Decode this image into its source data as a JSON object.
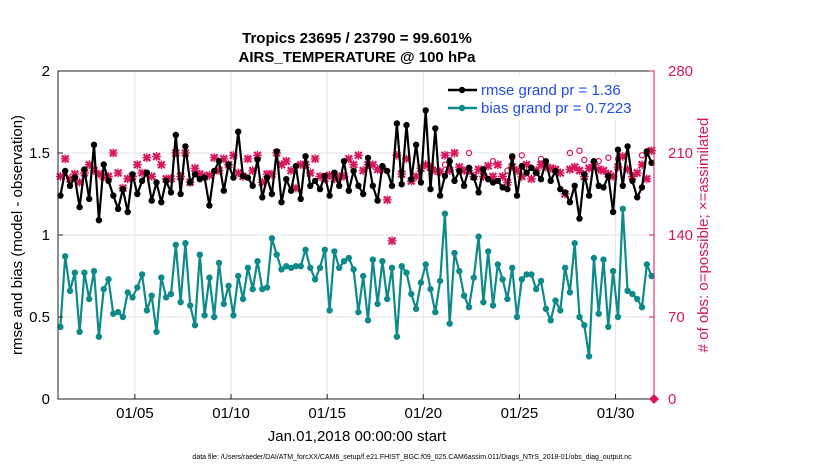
{
  "colors": {
    "rmse": "#000000",
    "bias": "#0e8a8a",
    "obs": "#d6175e",
    "legend_text": "#1f4fe0",
    "grid": "#e6e6e6",
    "axis": "#222222"
  },
  "chart_data": {
    "type": "line",
    "title": "Tropics 23695 / 23790 = 99.601%",
    "subtitle": "AIRS_TEMPERATURE @ 100 hPa",
    "xlabel": "Jan.01,2018 00:00:00 start",
    "ylabel_left": "rmse and bias (model - observation)",
    "ylabel_right": "# of obs: o=possible; ×=assimilated",
    "footer": "data file: /Users/raeder/DAI/ATM_forcXX/CAM6_setup/f.e21.FHIST_BGC.f09_025.CAM6assim.011/Diags_NTrS_2018-01/obs_diag_output.nc",
    "xlim": [
      1,
      32
    ],
    "x_ticks": [
      5,
      10,
      15,
      20,
      25,
      30
    ],
    "x_tick_labels": [
      "01/05",
      "01/10",
      "01/15",
      "01/20",
      "01/25",
      "01/30"
    ],
    "ylim_left": [
      0,
      2
    ],
    "y_ticks_left": [
      0,
      0.5,
      1,
      1.5,
      2
    ],
    "y_tick_labels_left": [
      "0",
      "0.5",
      "1",
      "1.5",
      "2"
    ],
    "ylim_right": [
      0,
      280
    ],
    "y_ticks_right": [
      0,
      70,
      140,
      210,
      280
    ],
    "y_tick_labels_right": [
      "0",
      "70",
      "140",
      "210",
      "280"
    ],
    "legend": [
      {
        "name": "rmse grand pr = 1.36",
        "color_key": "rmse"
      },
      {
        "name": "bias grand pr = 0.7223",
        "color_key": "bias"
      }
    ],
    "series": [
      {
        "name": "rmse",
        "axis": "left",
        "style": "line+dot",
        "x": [
          1.125,
          1.375,
          1.625,
          1.875,
          2.125,
          2.375,
          2.625,
          2.875,
          3.125,
          3.375,
          3.625,
          3.875,
          4.125,
          4.375,
          4.625,
          4.875,
          5.125,
          5.375,
          5.625,
          5.875,
          6.125,
          6.375,
          6.625,
          6.875,
          7.125,
          7.375,
          7.625,
          7.875,
          8.125,
          8.375,
          8.625,
          8.875,
          9.125,
          9.375,
          9.625,
          9.875,
          10.125,
          10.375,
          10.625,
          10.875,
          11.125,
          11.375,
          11.625,
          11.875,
          12.125,
          12.375,
          12.625,
          12.875,
          13.125,
          13.375,
          13.625,
          13.875,
          14.125,
          14.375,
          14.625,
          14.875,
          15.125,
          15.375,
          15.625,
          15.875,
          16.125,
          16.375,
          16.625,
          16.875,
          17.125,
          17.375,
          17.625,
          17.875,
          18.125,
          18.375,
          18.625,
          18.875,
          19.125,
          19.375,
          19.625,
          19.875,
          20.125,
          20.375,
          20.625,
          20.875,
          21.125,
          21.375,
          21.625,
          21.875,
          22.125,
          22.375,
          22.625,
          22.875,
          23.125,
          23.375,
          23.625,
          23.875,
          24.125,
          24.375,
          24.625,
          24.875,
          25.125,
          25.375,
          25.625,
          25.875,
          26.125,
          26.375,
          26.625,
          26.875,
          27.125,
          27.375,
          27.625,
          27.875,
          28.125,
          28.375,
          28.625,
          28.875,
          29.125,
          29.375,
          29.625,
          29.875,
          30.125,
          30.375,
          30.625,
          30.875,
          31.125,
          31.375,
          31.625,
          31.875
        ],
        "values": [
          1.24,
          1.39,
          1.3,
          1.35,
          1.17,
          1.4,
          1.22,
          1.55,
          1.09,
          1.43,
          1.33,
          1.24,
          1.16,
          1.28,
          1.14,
          1.37,
          1.25,
          1.33,
          1.38,
          1.21,
          1.32,
          1.2,
          1.33,
          1.26,
          1.61,
          1.25,
          1.54,
          1.32,
          1.37,
          1.34,
          1.35,
          1.18,
          1.39,
          1.45,
          1.27,
          1.43,
          1.35,
          1.63,
          1.36,
          1.35,
          1.3,
          1.46,
          1.23,
          1.35,
          1.25,
          1.51,
          1.2,
          1.34,
          1.27,
          1.42,
          1.22,
          1.48,
          1.3,
          1.33,
          1.28,
          1.36,
          1.24,
          1.38,
          1.3,
          1.45,
          1.27,
          1.39,
          1.3,
          1.25,
          1.47,
          1.3,
          1.21,
          1.42,
          1.39,
          1.3,
          1.68,
          1.31,
          1.67,
          1.34,
          1.55,
          1.32,
          1.76,
          1.28,
          1.65,
          1.24,
          1.36,
          1.45,
          1.33,
          1.39,
          1.3,
          1.41,
          1.35,
          1.26,
          1.4,
          1.34,
          1.32,
          1.33,
          1.29,
          1.28,
          1.48,
          1.24,
          1.42,
          1.38,
          1.41,
          1.38,
          1.34,
          1.45,
          1.33,
          1.39,
          1.28,
          1.26,
          1.2,
          1.3,
          1.1,
          1.37,
          1.24,
          1.45,
          1.3,
          1.29,
          1.36,
          1.14,
          1.52,
          1.3,
          1.54,
          1.33,
          1.23,
          1.29,
          1.51,
          1.44
        ]
      },
      {
        "name": "bias",
        "axis": "left",
        "style": "line+dot",
        "x": [
          1.125,
          1.375,
          1.625,
          1.875,
          2.125,
          2.375,
          2.625,
          2.875,
          3.125,
          3.375,
          3.625,
          3.875,
          4.125,
          4.375,
          4.625,
          4.875,
          5.125,
          5.375,
          5.625,
          5.875,
          6.125,
          6.375,
          6.625,
          6.875,
          7.125,
          7.375,
          7.625,
          7.875,
          8.125,
          8.375,
          8.625,
          8.875,
          9.125,
          9.375,
          9.625,
          9.875,
          10.125,
          10.375,
          10.625,
          10.875,
          11.125,
          11.375,
          11.625,
          11.875,
          12.125,
          12.375,
          12.625,
          12.875,
          13.125,
          13.375,
          13.625,
          13.875,
          14.125,
          14.375,
          14.625,
          14.875,
          15.125,
          15.375,
          15.625,
          15.875,
          16.125,
          16.375,
          16.625,
          16.875,
          17.125,
          17.375,
          17.625,
          17.875,
          18.125,
          18.375,
          18.625,
          18.875,
          19.125,
          19.375,
          19.625,
          19.875,
          20.125,
          20.375,
          20.625,
          20.875,
          21.125,
          21.375,
          21.625,
          21.875,
          22.125,
          22.375,
          22.625,
          22.875,
          23.125,
          23.375,
          23.625,
          23.875,
          24.125,
          24.375,
          24.625,
          24.875,
          25.125,
          25.375,
          25.625,
          25.875,
          26.125,
          26.375,
          26.625,
          26.875,
          27.125,
          27.375,
          27.625,
          27.875,
          28.125,
          28.375,
          28.625,
          28.875,
          29.125,
          29.375,
          29.625,
          29.875,
          30.125,
          30.375,
          30.625,
          30.875,
          31.125,
          31.375,
          31.625,
          31.875
        ],
        "values": [
          0.44,
          0.87,
          0.66,
          0.77,
          0.41,
          0.77,
          0.61,
          0.78,
          0.38,
          0.67,
          0.73,
          0.52,
          0.53,
          0.5,
          0.65,
          0.62,
          0.68,
          0.76,
          0.54,
          0.63,
          0.41,
          0.74,
          0.62,
          0.64,
          0.94,
          0.59,
          0.95,
          0.57,
          0.45,
          0.88,
          0.51,
          0.74,
          0.5,
          0.83,
          0.58,
          0.69,
          0.51,
          0.75,
          0.61,
          0.8,
          0.67,
          0.84,
          0.67,
          0.68,
          0.98,
          0.88,
          0.79,
          0.81,
          0.8,
          0.81,
          0.81,
          0.91,
          0.8,
          0.73,
          0.8,
          0.91,
          0.54,
          0.9,
          0.8,
          0.84,
          0.86,
          0.79,
          0.53,
          0.75,
          0.48,
          0.85,
          0.58,
          0.84,
          0.61,
          0.8,
          0.38,
          0.81,
          0.77,
          0.64,
          0.55,
          0.71,
          0.82,
          0.67,
          0.53,
          0.72,
          1.13,
          0.46,
          0.89,
          0.78,
          0.63,
          0.56,
          0.74,
          0.99,
          0.59,
          0.9,
          0.57,
          0.82,
          0.73,
          0.61,
          0.8,
          0.5,
          0.73,
          0.76,
          0.76,
          0.67,
          0.72,
          0.55,
          0.48,
          0.6,
          0.54,
          0.8,
          0.65,
          0.95,
          0.5,
          0.45,
          0.26,
          0.86,
          0.52,
          0.85,
          0.44,
          0.78,
          0.5,
          1.16,
          0.66,
          0.64,
          0.61,
          0.56,
          0.82,
          0.75
        ]
      },
      {
        "name": "obs possible",
        "axis": "right",
        "style": "o",
        "x": [
          21.125,
          21.375,
          22.375,
          23.625,
          24.375,
          24.625,
          25.125,
          26.125,
          27.625,
          28.125,
          28.375,
          29.125,
          29.625,
          30.125,
          31.375,
          31.625
        ],
        "values": [
          200,
          208,
          210,
          203,
          195,
          206,
          208,
          205,
          210,
          212,
          204,
          203,
          206,
          205,
          208,
          210
        ]
      },
      {
        "name": "obs assimilated",
        "axis": "right",
        "style": "x",
        "x": [
          1.125,
          1.375,
          1.625,
          1.875,
          2.125,
          2.375,
          2.625,
          2.875,
          3.125,
          3.375,
          3.625,
          3.875,
          4.125,
          4.375,
          4.625,
          4.875,
          5.125,
          5.375,
          5.625,
          5.875,
          6.125,
          6.375,
          6.625,
          6.875,
          7.125,
          7.375,
          7.625,
          7.875,
          8.125,
          8.375,
          8.625,
          8.875,
          9.125,
          9.375,
          9.625,
          9.875,
          10.125,
          10.375,
          10.625,
          10.875,
          11.125,
          11.375,
          11.625,
          11.875,
          12.125,
          12.375,
          12.625,
          12.875,
          13.125,
          13.375,
          13.625,
          13.875,
          14.125,
          14.375,
          14.625,
          14.875,
          15.125,
          15.375,
          15.625,
          15.875,
          16.125,
          16.375,
          16.625,
          16.875,
          17.125,
          17.375,
          17.625,
          17.875,
          18.125,
          18.375,
          18.625,
          18.875,
          19.125,
          19.375,
          19.625,
          19.875,
          20.125,
          20.375,
          20.625,
          20.875,
          21.125,
          21.375,
          21.625,
          21.875,
          22.125,
          22.375,
          22.625,
          22.875,
          23.125,
          23.375,
          23.625,
          23.875,
          24.125,
          24.375,
          24.625,
          24.875,
          25.125,
          25.375,
          25.625,
          25.875,
          26.125,
          26.375,
          26.625,
          26.875,
          27.125,
          27.375,
          27.625,
          27.875,
          28.125,
          28.375,
          28.625,
          28.875,
          29.125,
          29.375,
          29.625,
          29.875,
          30.125,
          30.375,
          30.625,
          30.875,
          31.125,
          31.375,
          31.625,
          31.875
        ],
        "values": [
          190,
          205,
          188,
          192,
          185,
          193,
          200,
          195,
          192,
          190,
          190,
          210,
          193,
          180,
          188,
          190,
          200,
          193,
          206,
          190,
          207,
          200,
          188,
          188,
          210,
          190,
          210,
          185,
          197,
          192,
          190,
          191,
          206,
          195,
          205,
          200,
          208,
          193,
          190,
          205,
          195,
          208,
          185,
          192,
          192,
          210,
          200,
          203,
          195,
          180,
          200,
          200,
          193,
          205,
          190,
          188,
          191,
          188,
          190,
          190,
          205,
          200,
          208,
          195,
          200,
          200,
          196,
          196,
          170,
          135,
          208,
          192,
          205,
          186,
          190,
          197,
          200,
          198,
          195,
          194,
          208,
          195,
          210,
          198,
          195,
          195,
          190,
          196,
          190,
          199,
          190,
          200,
          190,
          185,
          198,
          195,
          190,
          200,
          188,
          195,
          200,
          198,
          197,
          196,
          193,
          175,
          196,
          198,
          195,
          190,
          197,
          200,
          196,
          195,
          192,
          190,
          198,
          207,
          196,
          190,
          193,
          200,
          188,
          212
        ]
      }
    ]
  }
}
